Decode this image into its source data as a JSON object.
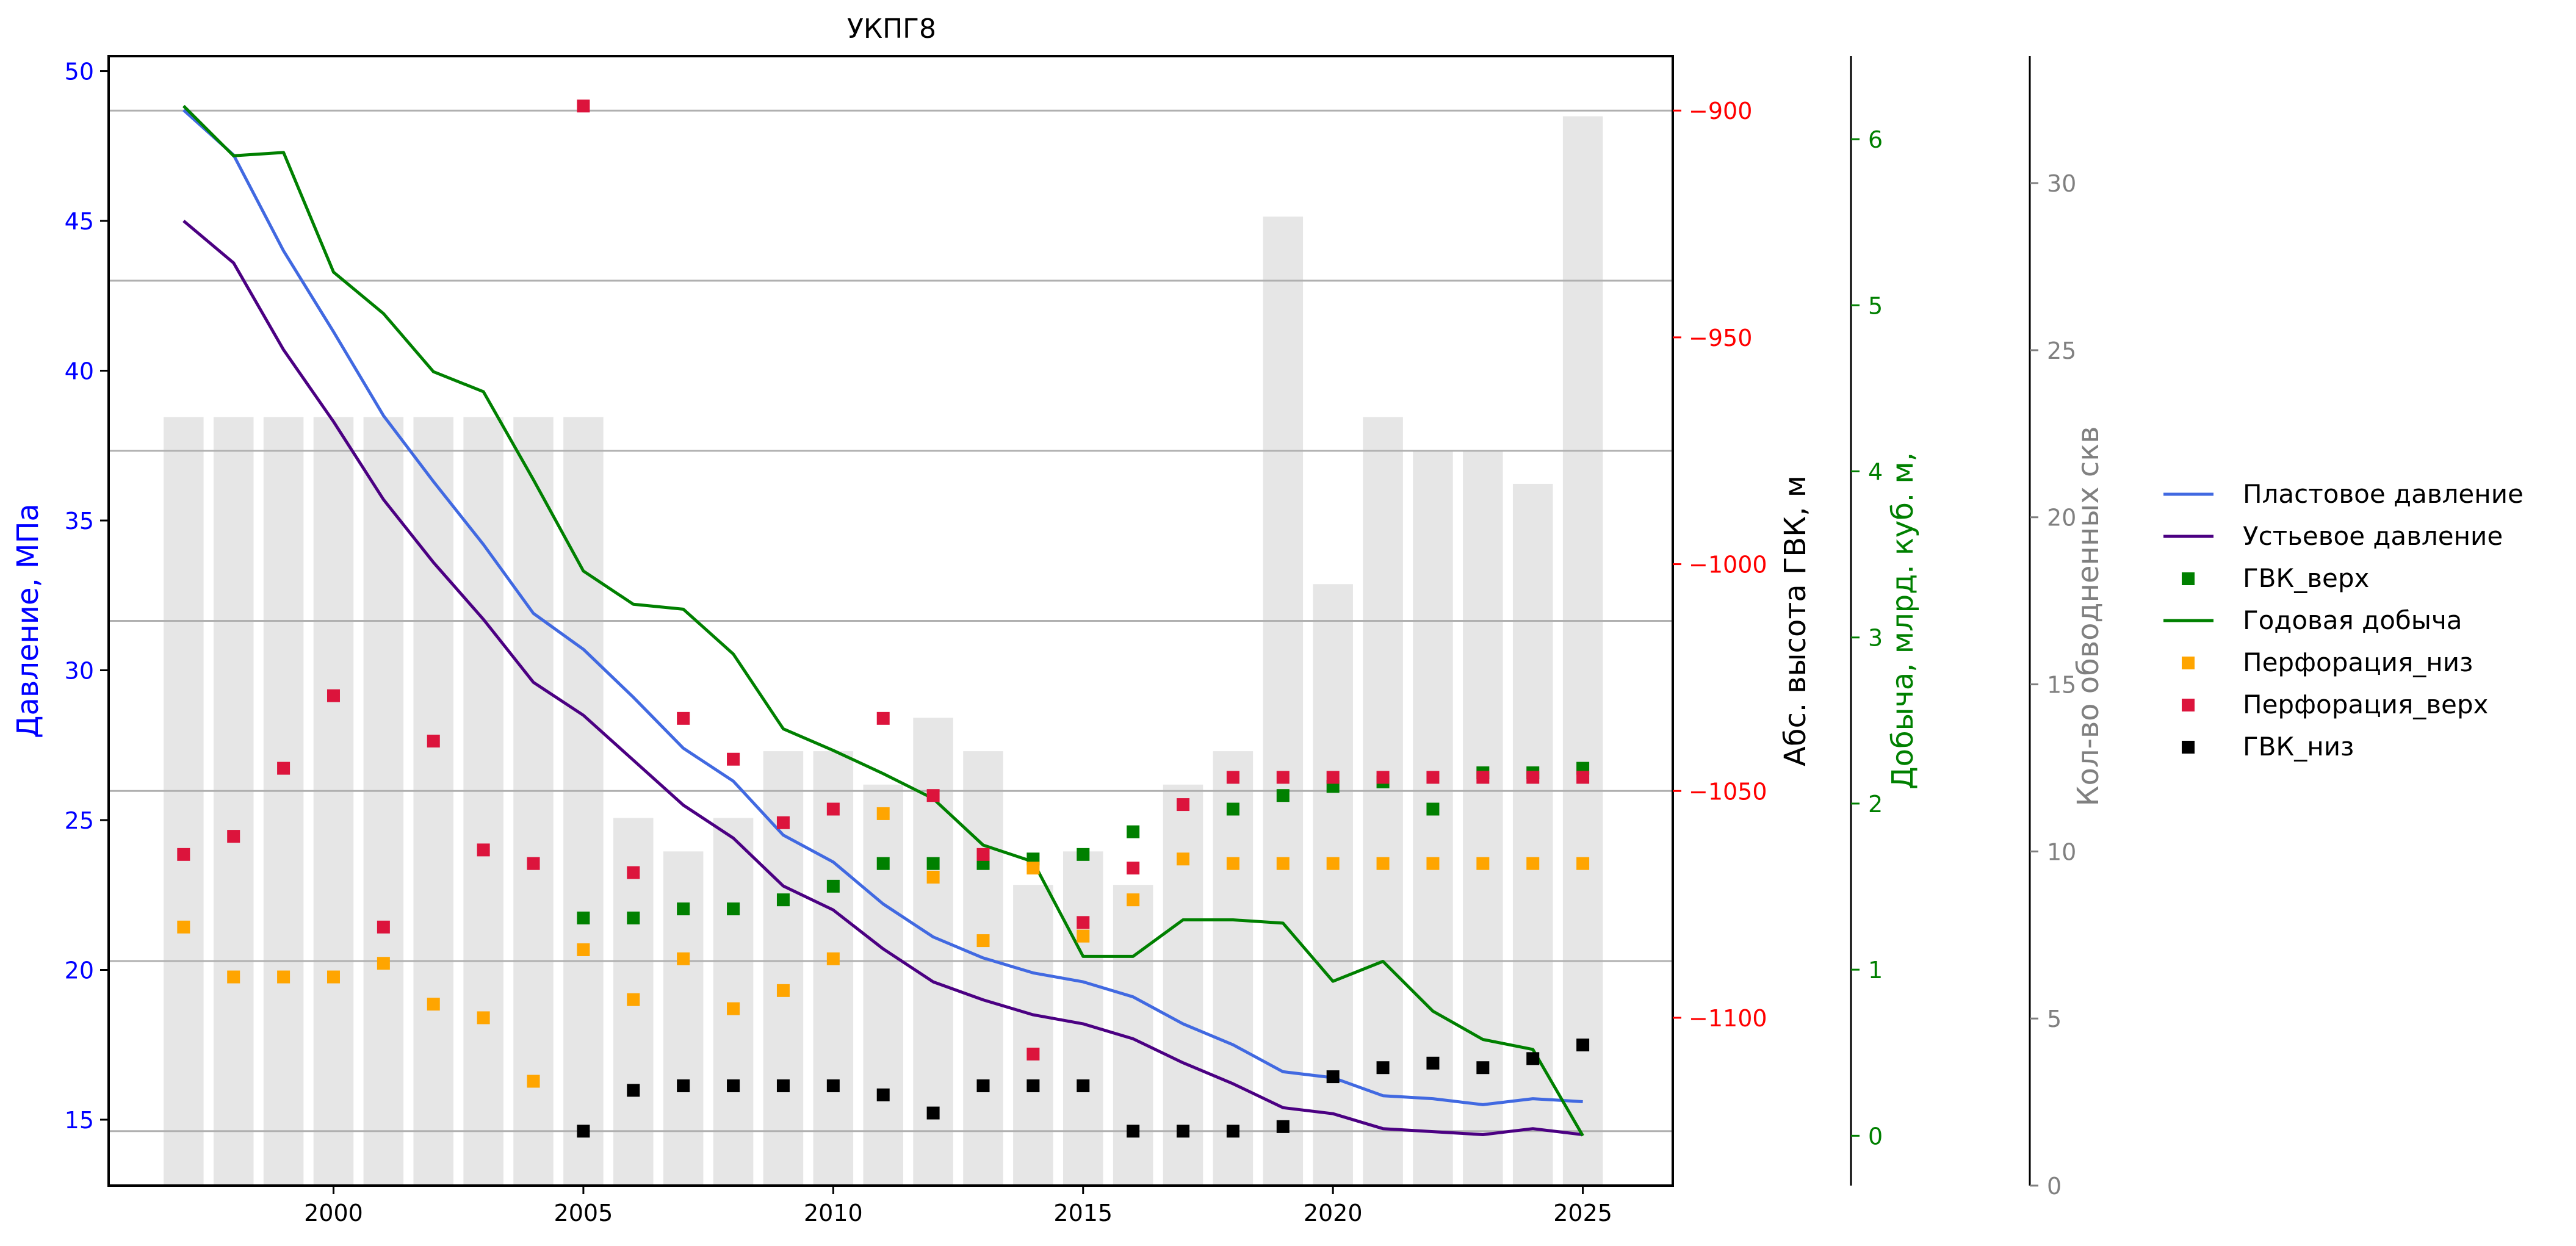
{
  "chart_data": {
    "type": "combo",
    "title": "УКПГ8",
    "xlim": [
      1995.5,
      2026.8
    ],
    "x_ticks": [
      2000,
      2005,
      2010,
      2015,
      2020,
      2025
    ],
    "axes": {
      "pressure": {
        "label": "Давление, МПа",
        "ylim": [
          12.8,
          50.5
        ],
        "ticks": [
          15,
          20,
          25,
          30,
          35,
          40,
          45,
          50
        ],
        "color": "#0000ff"
      },
      "gvk": {
        "label": "Абс. высота ГВК, м",
        "ylim": [
          -1137,
          -888
        ],
        "ticks": [
          -900,
          -950,
          -1000,
          -1050,
          -1100
        ],
        "tick_labels": [
          "−900",
          "−950",
          "−1000",
          "−1050",
          "−1100"
        ],
        "color": "#ff0000",
        "label_color": "#000000"
      },
      "production": {
        "label": "Добыча, млрд. куб. м,",
        "ylim": [
          -0.3,
          6.5
        ],
        "ticks": [
          0,
          1,
          2,
          3,
          4,
          5,
          6
        ],
        "color": "#008000"
      },
      "wells": {
        "label": "Кол-во обводненных скв",
        "ylim": [
          0,
          33.8
        ],
        "ticks": [
          0,
          5,
          10,
          15,
          20,
          25,
          30
        ],
        "color": "#808080"
      }
    },
    "years": [
      1997,
      1998,
      1999,
      2000,
      2001,
      2002,
      2003,
      2004,
      2005,
      2006,
      2007,
      2008,
      2009,
      2010,
      2011,
      2012,
      2013,
      2014,
      2015,
      2016,
      2017,
      2018,
      2019,
      2020,
      2021,
      2022,
      2023,
      2024,
      2025
    ],
    "watered_wells": [
      23,
      23,
      23,
      23,
      23,
      23,
      23,
      23,
      23,
      11,
      10,
      11,
      13,
      13,
      12,
      14,
      13,
      9,
      10,
      9,
      12,
      13,
      29,
      18,
      23,
      22,
      22,
      21,
      32
    ],
    "series": [
      {
        "name": "Пластовое давление",
        "type": "line",
        "axis": "pressure",
        "color": "#4169e1",
        "values": [
          48.7,
          47.2,
          44.0,
          41.3,
          38.5,
          36.3,
          34.2,
          31.9,
          30.7,
          29.1,
          27.4,
          26.3,
          24.5,
          23.6,
          22.2,
          21.1,
          20.4,
          19.9,
          19.6,
          19.1,
          18.2,
          17.5,
          16.6,
          16.4,
          15.8,
          15.7,
          15.5,
          15.7,
          15.6
        ]
      },
      {
        "name": "Устьевое давление",
        "type": "line",
        "axis": "pressure",
        "color": "#4b0082",
        "values": [
          45.0,
          43.6,
          40.7,
          38.3,
          35.7,
          33.6,
          31.7,
          29.6,
          28.5,
          27.0,
          25.5,
          24.4,
          22.8,
          22.0,
          20.7,
          19.6,
          19.0,
          18.5,
          18.2,
          17.7,
          16.9,
          16.2,
          15.4,
          15.2,
          14.7,
          14.6,
          14.5,
          14.7,
          14.5
        ]
      },
      {
        "name": "ГВК_верх",
        "type": "scatter",
        "axis": "gvk",
        "color": "#008000",
        "points": [
          [
            2005,
            -1078
          ],
          [
            2006,
            -1078
          ],
          [
            2007,
            -1076
          ],
          [
            2008,
            -1076
          ],
          [
            2009,
            -1074
          ],
          [
            2010,
            -1071
          ],
          [
            2011,
            -1066
          ],
          [
            2012,
            -1066
          ],
          [
            2013,
            -1066
          ],
          [
            2014,
            -1065
          ],
          [
            2015,
            -1064
          ],
          [
            2016,
            -1059
          ],
          [
            2018,
            -1054
          ],
          [
            2019,
            -1051
          ],
          [
            2020,
            -1049
          ],
          [
            2021,
            -1048
          ],
          [
            2022,
            -1054
          ],
          [
            2023,
            -1046
          ],
          [
            2024,
            -1046
          ],
          [
            2025,
            -1045
          ]
        ]
      },
      {
        "name": "Годовая добыча",
        "type": "line",
        "axis": "production",
        "color": "#008000",
        "values": [
          6.2,
          5.9,
          5.92,
          5.2,
          4.95,
          4.6,
          4.48,
          3.95,
          3.4,
          3.2,
          3.17,
          2.9,
          2.45,
          2.32,
          2.18,
          2.03,
          1.75,
          1.65,
          1.08,
          1.08,
          1.3,
          1.3,
          1.28,
          0.93,
          1.05,
          0.75,
          0.58,
          0.52,
          0.0
        ]
      },
      {
        "name": "Перфорация_низ",
        "type": "scatter",
        "axis": "gvk",
        "color": "#ffa500",
        "points": [
          [
            1997,
            -1080
          ],
          [
            1998,
            -1091
          ],
          [
            1999,
            -1091
          ],
          [
            2000,
            -1091
          ],
          [
            2001,
            -1088
          ],
          [
            2002,
            -1097
          ],
          [
            2003,
            -1100
          ],
          [
            2004,
            -1114
          ],
          [
            2005,
            -1085
          ],
          [
            2006,
            -1096
          ],
          [
            2007,
            -1087
          ],
          [
            2008,
            -1098
          ],
          [
            2009,
            -1094
          ],
          [
            2010,
            -1087
          ],
          [
            2011,
            -1055
          ],
          [
            2012,
            -1069
          ],
          [
            2013,
            -1083
          ],
          [
            2014,
            -1067
          ],
          [
            2015,
            -1082
          ],
          [
            2016,
            -1074
          ],
          [
            2017,
            -1065
          ],
          [
            2018,
            -1066
          ],
          [
            2019,
            -1066
          ],
          [
            2020,
            -1066
          ],
          [
            2021,
            -1066
          ],
          [
            2022,
            -1066
          ],
          [
            2023,
            -1066
          ],
          [
            2024,
            -1066
          ],
          [
            2025,
            -1066
          ]
        ]
      },
      {
        "name": "Перфорация_верх",
        "type": "scatter",
        "axis": "gvk",
        "color": "#dc143c",
        "points": [
          [
            1997,
            -1064
          ],
          [
            1998,
            -1060
          ],
          [
            1999,
            -1045
          ],
          [
            2000,
            -1029
          ],
          [
            2001,
            -1080
          ],
          [
            2002,
            -1039
          ],
          [
            2003,
            -1063
          ],
          [
            2004,
            -1066
          ],
          [
            2005,
            -899
          ],
          [
            2006,
            -1068
          ],
          [
            2007,
            -1034
          ],
          [
            2008,
            -1043
          ],
          [
            2009,
            -1057
          ],
          [
            2010,
            -1054
          ],
          [
            2011,
            -1034
          ],
          [
            2012,
            -1051
          ],
          [
            2013,
            -1064
          ],
          [
            2014,
            -1108
          ],
          [
            2015,
            -1079
          ],
          [
            2016,
            -1067
          ],
          [
            2017,
            -1053
          ],
          [
            2018,
            -1047
          ],
          [
            2019,
            -1047
          ],
          [
            2020,
            -1047
          ],
          [
            2021,
            -1047
          ],
          [
            2022,
            -1047
          ],
          [
            2023,
            -1047
          ],
          [
            2024,
            -1047
          ],
          [
            2025,
            -1047
          ]
        ]
      },
      {
        "name": "ГВК_низ",
        "type": "scatter",
        "axis": "gvk",
        "color": "#000000",
        "points": [
          [
            2005,
            -1125
          ],
          [
            2006,
            -1116
          ],
          [
            2007,
            -1115
          ],
          [
            2008,
            -1115
          ],
          [
            2009,
            -1115
          ],
          [
            2010,
            -1115
          ],
          [
            2011,
            -1117
          ],
          [
            2012,
            -1121
          ],
          [
            2013,
            -1115
          ],
          [
            2014,
            -1115
          ],
          [
            2015,
            -1115
          ],
          [
            2016,
            -1125
          ],
          [
            2017,
            -1125
          ],
          [
            2018,
            -1125
          ],
          [
            2019,
            -1124
          ],
          [
            2020,
            -1113
          ],
          [
            2021,
            -1111
          ],
          [
            2022,
            -1110
          ],
          [
            2023,
            -1111
          ],
          [
            2024,
            -1109
          ],
          [
            2025,
            -1106
          ]
        ]
      }
    ],
    "legend": {
      "placement": "right",
      "items": [
        {
          "label": "Пластовое давление",
          "marker": "line",
          "color": "#4169e1"
        },
        {
          "label": "Устьевое давление",
          "marker": "line",
          "color": "#4b0082"
        },
        {
          "label": "ГВК_верх",
          "marker": "square",
          "color": "#008000"
        },
        {
          "label": "Годовая добыча",
          "marker": "line",
          "color": "#008000"
        },
        {
          "label": "Перфорация_низ",
          "marker": "square",
          "color": "#ffa500"
        },
        {
          "label": "Перфорация_верх",
          "marker": "square",
          "color": "#dc143c"
        },
        {
          "label": "ГВК_низ",
          "marker": "square",
          "color": "#000000"
        }
      ]
    }
  }
}
